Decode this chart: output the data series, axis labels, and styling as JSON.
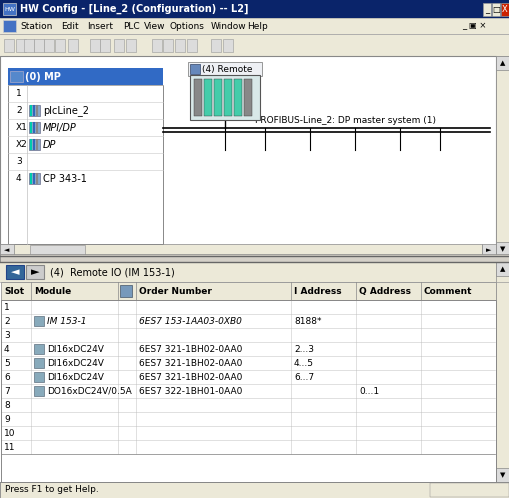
{
  "title": "HW Config - [Line_2 (Configuration) -- L2]",
  "bg_color": "#ECE9D8",
  "titlebar_color": "#0A246A",
  "menubar_items": [
    "Station",
    "Edit",
    "Insert",
    "PLC",
    "View",
    "Options",
    "Window",
    "Help"
  ],
  "profibus_label": "PROFIBUS-Line_2: DP master system (1)",
  "remote_label": "(4) Remote",
  "nav_label": "(4)  Remote IO (IM 153-1)",
  "status_bar": "Press F1 to get Help.",
  "mp_rows": [
    {
      "slot": "1",
      "icon": false,
      "name": "",
      "italic": false
    },
    {
      "slot": "2",
      "icon": true,
      "name": "plcLine_2",
      "italic": false
    },
    {
      "slot": "X1",
      "icon": true,
      "name": "MPI/DP",
      "italic": true
    },
    {
      "slot": "X2",
      "icon": true,
      "name": "DP",
      "italic": true
    },
    {
      "slot": "3",
      "icon": false,
      "name": "",
      "italic": false
    },
    {
      "slot": "4",
      "icon": true,
      "name": "CP 343-1",
      "italic": false
    }
  ],
  "table_rows": [
    {
      "slot": "1",
      "icon": false,
      "module": "",
      "order": "",
      "iaddr": "",
      "qaddr": "",
      "italic": false
    },
    {
      "slot": "2",
      "icon": true,
      "module": "IM 153-1",
      "order": "6ES7 153-1AA03-0XB0",
      "iaddr": "8188*",
      "qaddr": "",
      "italic": true
    },
    {
      "slot": "3",
      "icon": false,
      "module": "",
      "order": "",
      "iaddr": "",
      "qaddr": "",
      "italic": false
    },
    {
      "slot": "4",
      "icon": true,
      "module": "DI16xDC24V",
      "order": "6ES7 321-1BH02-0AA0",
      "iaddr": "2...3",
      "qaddr": "",
      "italic": false
    },
    {
      "slot": "5",
      "icon": true,
      "module": "DI16xDC24V",
      "order": "6ES7 321-1BH02-0AA0",
      "iaddr": "4...5",
      "qaddr": "",
      "italic": false
    },
    {
      "slot": "6",
      "icon": true,
      "module": "DI16xDC24V",
      "order": "6ES7 321-1BH02-0AA0",
      "iaddr": "6...7",
      "qaddr": "",
      "italic": false
    },
    {
      "slot": "7",
      "icon": true,
      "module": "DO16xDC24V/0.5A",
      "order": "6ES7 322-1BH01-0AA0",
      "iaddr": "",
      "qaddr": "0...1",
      "italic": false
    },
    {
      "slot": "8",
      "icon": false,
      "module": "",
      "order": "",
      "iaddr": "",
      "qaddr": "",
      "italic": false
    },
    {
      "slot": "9",
      "icon": false,
      "module": "",
      "order": "",
      "iaddr": "",
      "qaddr": "",
      "italic": false
    },
    {
      "slot": "10",
      "icon": false,
      "module": "",
      "order": "",
      "iaddr": "",
      "qaddr": "",
      "italic": false
    },
    {
      "slot": "11",
      "icon": false,
      "module": "",
      "order": "",
      "iaddr": "",
      "qaddr": "",
      "italic": false
    }
  ]
}
